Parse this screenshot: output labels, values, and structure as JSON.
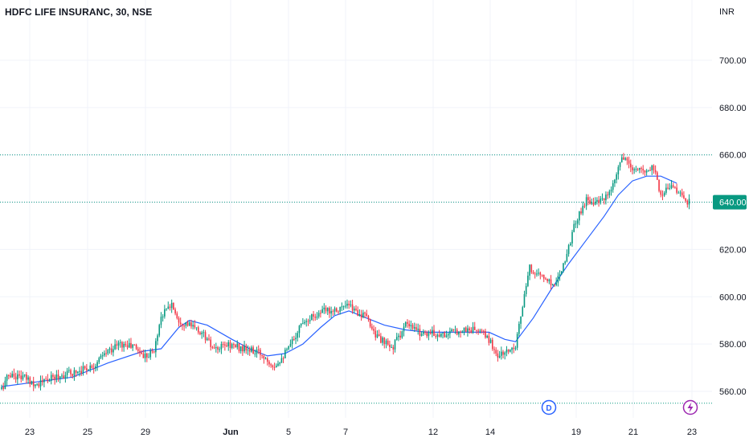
{
  "header": {
    "symbol_title": "HDFC LIFE INSURANC, 30, NSE",
    "currency": "INR"
  },
  "badges": {
    "dividend_label": "D",
    "event_icon": "lightning-icon"
  },
  "colors": {
    "up": "#089981",
    "down": "#f23645",
    "ma_line": "#2962ff",
    "last_price_bg": "#089981",
    "grid": "#f0f3fa",
    "dotted_line": "#089981",
    "axis_text": "#131722",
    "badge_blue": "#2962ff",
    "badge_purple": "#9c27b0"
  },
  "chart_data": {
    "type": "candlestick",
    "title": "HDFC LIFE INSURANC, 30, NSE",
    "y_unit": "INR",
    "ylim": [
      553,
      718
    ],
    "y_ticks": [
      560,
      580,
      600,
      620,
      640,
      660,
      680,
      700
    ],
    "y_tick_labels": [
      "560.00",
      "580.00",
      "600.00",
      "620.00",
      "640.00",
      "660.00",
      "680.00",
      "700.00"
    ],
    "x_tick_labels": [
      "23",
      "25",
      "29",
      "Jun",
      "5",
      "7",
      "12",
      "14",
      "19",
      "21",
      "23"
    ],
    "last_price": 640.0,
    "last_price_label": "640.00",
    "reference_lines": [
      660.0,
      640.0,
      555.0
    ],
    "grid": true,
    "moving_average_shown": true,
    "series": [
      {
        "name": "price",
        "close_anchors": [
          [
            0,
            561
          ],
          [
            4,
            567
          ],
          [
            12,
            566
          ],
          [
            20,
            563
          ],
          [
            30,
            566
          ],
          [
            40,
            568
          ],
          [
            52,
            571
          ],
          [
            60,
            577
          ],
          [
            66,
            580
          ],
          [
            75,
            579
          ],
          [
            80,
            575
          ],
          [
            86,
            577
          ],
          [
            90,
            592
          ],
          [
            96,
            597
          ],
          [
            100,
            590
          ],
          [
            106,
            588
          ],
          [
            114,
            584
          ],
          [
            120,
            577
          ],
          [
            128,
            580
          ],
          [
            136,
            578
          ],
          [
            146,
            576
          ],
          [
            154,
            571
          ],
          [
            162,
            578
          ],
          [
            170,
            590
          ],
          [
            182,
            594
          ],
          [
            196,
            596
          ],
          [
            206,
            591
          ],
          [
            212,
            583
          ],
          [
            220,
            578
          ],
          [
            228,
            588
          ],
          [
            236,
            585
          ],
          [
            250,
            584
          ],
          [
            260,
            586
          ],
          [
            268,
            586
          ],
          [
            274,
            583
          ],
          [
            280,
            575
          ],
          [
            286,
            577
          ],
          [
            290,
            580
          ],
          [
            294,
            596
          ],
          [
            298,
            612
          ],
          [
            306,
            608
          ],
          [
            312,
            605
          ],
          [
            318,
            616
          ],
          [
            324,
            632
          ],
          [
            330,
            641
          ],
          [
            338,
            640
          ],
          [
            344,
            644
          ],
          [
            350,
            659
          ],
          [
            356,
            654
          ],
          [
            362,
            653
          ],
          [
            368,
            655
          ],
          [
            372,
            643
          ],
          [
            378,
            648
          ],
          [
            384,
            642
          ],
          [
            388,
            640
          ]
        ]
      },
      {
        "name": "moving average",
        "points": [
          [
            0,
            562
          ],
          [
            20,
            564
          ],
          [
            40,
            566
          ],
          [
            60,
            572
          ],
          [
            80,
            577
          ],
          [
            90,
            578
          ],
          [
            100,
            587
          ],
          [
            106,
            590
          ],
          [
            116,
            588
          ],
          [
            130,
            582
          ],
          [
            140,
            578
          ],
          [
            150,
            575
          ],
          [
            160,
            576
          ],
          [
            170,
            580
          ],
          [
            180,
            587
          ],
          [
            188,
            592
          ],
          [
            196,
            594
          ],
          [
            206,
            591
          ],
          [
            216,
            588
          ],
          [
            228,
            586
          ],
          [
            240,
            585
          ],
          [
            260,
            585
          ],
          [
            275,
            585
          ],
          [
            284,
            582
          ],
          [
            290,
            581
          ],
          [
            300,
            591
          ],
          [
            310,
            603
          ],
          [
            320,
            614
          ],
          [
            330,
            624
          ],
          [
            340,
            634
          ],
          [
            348,
            643
          ],
          [
            356,
            649
          ],
          [
            364,
            651
          ],
          [
            372,
            651
          ],
          [
            378,
            649
          ],
          [
            381,
            648
          ]
        ]
      }
    ]
  }
}
